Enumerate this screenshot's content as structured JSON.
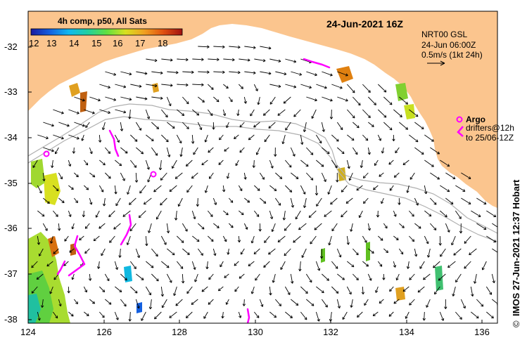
{
  "map": {
    "title_datetime": "24-Jun-2021 16Z",
    "colorbar": {
      "title": "4h comp, p50, All Sats",
      "tick_labels": [
        "12",
        "13",
        "14",
        "15",
        "16",
        "17",
        "18"
      ],
      "stops": [
        "#1a1aa0",
        "#1460e0",
        "#10b8f0",
        "#20d0a0",
        "#60e040",
        "#d8e020",
        "#f0a020",
        "#e05010",
        "#a01010"
      ]
    },
    "currents_legend": {
      "model": "NRT00 GSL",
      "datetime": "24-Jun 06:00Z",
      "scale": "0.5m/s (1kt 24h)"
    },
    "argo_legend": {
      "argo_label": "Argo",
      "drifters_label": "drifters@12h",
      "drifters_to": "to 25/06-12Z"
    },
    "credit": "IMOS 27-Jun-2021 12:37 Hobart",
    "copyright_symbol": "©",
    "lat_labels": [
      "-32",
      "-33",
      "-34",
      "-35",
      "-36",
      "-37",
      "-38"
    ],
    "lon_labels": [
      "124",
      "126",
      "128",
      "130",
      "132",
      "134",
      "136"
    ],
    "colors": {
      "land": "#fbc58e",
      "sea": "#ffffff",
      "argo": "#ff00ff",
      "bathymetry": "#b0b0b0"
    }
  }
}
